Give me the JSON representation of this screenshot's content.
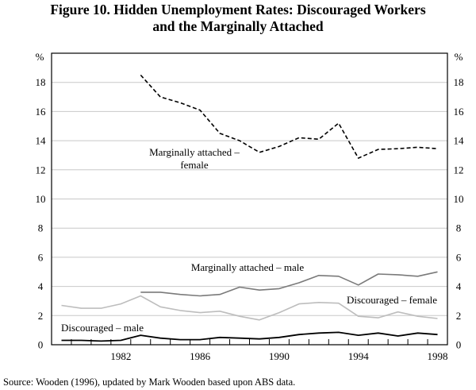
{
  "chart_data": {
    "type": "line",
    "title_line1": "Figure 10. Hidden Unemployment Rates: Discouraged Workers",
    "title_line2": "and the Marginally Attached",
    "ylabel_left": "%",
    "ylabel_right": "%",
    "ylim": [
      0,
      20
    ],
    "yticks": [
      0,
      2,
      4,
      6,
      8,
      10,
      12,
      14,
      16,
      18
    ],
    "xlim": [
      1978.5,
      1998.5
    ],
    "xtick_labels": [
      1982,
      1986,
      1990,
      1994,
      1998
    ],
    "grid": true,
    "series": [
      {
        "name": "Marginally attached – female",
        "label_lines": [
          "Marginally attached –",
          "female"
        ],
        "color": "#000000",
        "style": "dashed",
        "x": [
          1983,
          1984,
          1985,
          1986,
          1987,
          1988,
          1989,
          1990,
          1991,
          1992,
          1993,
          1994,
          1995,
          1996,
          1997,
          1998
        ],
        "values": [
          18.5,
          17.0,
          16.6,
          16.1,
          14.5,
          14.0,
          13.2,
          13.6,
          14.2,
          14.1,
          15.2,
          12.8,
          13.4,
          13.45,
          13.55,
          13.45
        ]
      },
      {
        "name": "Marginally attached – male",
        "label_lines": [
          "Marginally attached – male"
        ],
        "color": "#7a7a7a",
        "style": "solid",
        "x": [
          1983,
          1984,
          1985,
          1986,
          1987,
          1988,
          1989,
          1990,
          1991,
          1992,
          1993,
          1994,
          1995,
          1996,
          1997,
          1998
        ],
        "values": [
          3.6,
          3.6,
          3.45,
          3.35,
          3.45,
          3.95,
          3.75,
          3.85,
          4.25,
          4.75,
          4.7,
          4.1,
          4.85,
          4.8,
          4.7,
          5.0
        ]
      },
      {
        "name": "Discouraged – female",
        "label_lines": [
          "Discouraged – female"
        ],
        "color": "#bdbdbd",
        "style": "solid",
        "x": [
          1979,
          1980,
          1981,
          1982,
          1983,
          1984,
          1985,
          1986,
          1987,
          1988,
          1989,
          1990,
          1991,
          1992,
          1993,
          1994,
          1995,
          1996,
          1997,
          1998
        ],
        "values": [
          2.7,
          2.5,
          2.5,
          2.8,
          3.35,
          2.6,
          2.35,
          2.2,
          2.3,
          1.95,
          1.7,
          2.2,
          2.8,
          2.9,
          2.85,
          1.95,
          1.85,
          2.25,
          1.95,
          1.8
        ]
      },
      {
        "name": "Discouraged – male",
        "label_lines": [
          "Discouraged – male"
        ],
        "color": "#000000",
        "style": "solid",
        "x": [
          1979,
          1980,
          1981,
          1982,
          1983,
          1984,
          1985,
          1986,
          1987,
          1988,
          1989,
          1990,
          1991,
          1992,
          1993,
          1994,
          1995,
          1996,
          1997,
          1998
        ],
        "values": [
          0.3,
          0.3,
          0.25,
          0.3,
          0.65,
          0.45,
          0.35,
          0.35,
          0.5,
          0.45,
          0.4,
          0.5,
          0.7,
          0.8,
          0.85,
          0.65,
          0.8,
          0.6,
          0.8,
          0.7
        ]
      }
    ],
    "source": "Source: Wooden (1996), updated by Mark Wooden based upon ABS data."
  }
}
